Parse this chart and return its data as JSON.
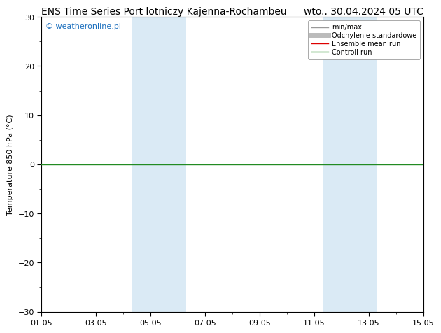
{
  "title_left": "ENS Time Series Port lotniczy Kajenna-Rochambeu",
  "title_right": "wto.. 30.04.2024 05 UTC",
  "ylabel": "Temperature 850 hPa (°C)",
  "watermark": "© weatheronline.pl",
  "ylim": [
    -30,
    30
  ],
  "yticks": [
    -30,
    -20,
    -10,
    0,
    10,
    20,
    30
  ],
  "xmin": 0,
  "xmax": 14,
  "xtick_labels": [
    "01.05",
    "03.05",
    "05.05",
    "07.05",
    "09.05",
    "11.05",
    "13.05",
    "15.05"
  ],
  "xtick_positions": [
    0,
    2,
    4,
    6,
    8,
    10,
    12,
    14
  ],
  "shaded_bands": [
    {
      "xmin": 3.3,
      "xmax": 5.3
    },
    {
      "xmin": 10.3,
      "xmax": 12.3
    }
  ],
  "shaded_color": "#daeaf5",
  "zero_line_color": "#228B22",
  "zero_line_y": 0,
  "bg_color": "#ffffff",
  "plot_bg_color": "#ffffff",
  "legend_items": [
    {
      "label": "min/max",
      "color": "#999999",
      "lw": 1.0,
      "style": "-"
    },
    {
      "label": "Odchylenie standardowe",
      "color": "#bbbbbb",
      "lw": 5,
      "style": "-"
    },
    {
      "label": "Ensemble mean run",
      "color": "#dd0000",
      "lw": 1.0,
      "style": "-"
    },
    {
      "label": "Controll run",
      "color": "#228B22",
      "lw": 1.0,
      "style": "-"
    }
  ],
  "title_fontsize": 10,
  "axis_fontsize": 8,
  "watermark_fontsize": 8,
  "watermark_color": "#1a6ebd"
}
